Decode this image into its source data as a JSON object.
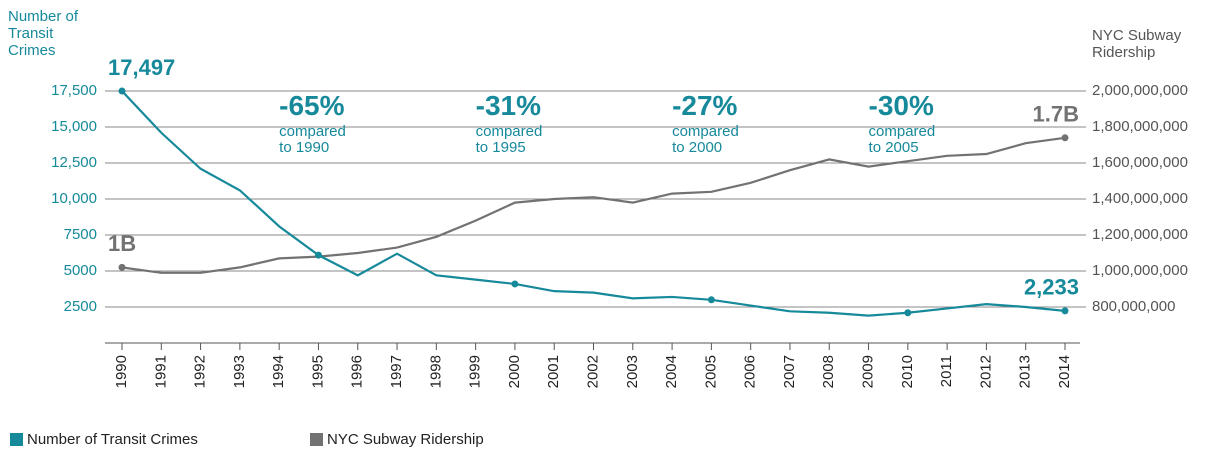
{
  "chart_data": {
    "type": "line",
    "y_label": "Number of Transit Crimes",
    "y2_label": "NYC Subway Ridership",
    "categories": [
      "1990",
      "1991",
      "1992",
      "1993",
      "1994",
      "1995",
      "1996",
      "1997",
      "1998",
      "1999",
      "2000",
      "2001",
      "2002",
      "2003",
      "2004",
      "2005",
      "2006",
      "2007",
      "2008",
      "2009",
      "2010",
      "2011",
      "2012",
      "2013",
      "2014"
    ],
    "series": [
      {
        "name": "Number of Transit Crimes",
        "color": "#16899a",
        "values": [
          17497,
          14600,
          12100,
          10600,
          8100,
          6100,
          4700,
          6200,
          4700,
          4400,
          4100,
          3600,
          3500,
          3100,
          3200,
          3000,
          2600,
          2200,
          2100,
          1900,
          2100,
          2400,
          2700,
          2500,
          2233
        ],
        "value_labels": [
          "17,497",
          null,
          null,
          null,
          null,
          null,
          null,
          null,
          null,
          null,
          null,
          null,
          null,
          null,
          null,
          null,
          null,
          null,
          null,
          null,
          null,
          null,
          null,
          null,
          "2,233"
        ]
      },
      {
        "name": "NYC Subway Ridership",
        "color": "#727272",
        "axis": "y2",
        "values": [
          1020000000,
          990000000,
          990000000,
          1020000000,
          1070000000,
          1080000000,
          1100000000,
          1130000000,
          1190000000,
          1280000000,
          1380000000,
          1400000000,
          1410000000,
          1380000000,
          1430000000,
          1440000000,
          1490000000,
          1560000000,
          1620000000,
          1580000000,
          1610000000,
          1640000000,
          1650000000,
          1710000000,
          1740000000
        ],
        "value_labels": [
          "1B",
          null,
          null,
          null,
          null,
          null,
          null,
          null,
          null,
          null,
          null,
          null,
          null,
          null,
          null,
          null,
          null,
          null,
          null,
          null,
          null,
          null,
          null,
          null,
          "1.7B"
        ]
      }
    ],
    "ylim": [
      0,
      17500
    ],
    "yticks": [
      2500,
      5000,
      7500,
      {
        "value": 10000,
        "label": "10,000"
      },
      {
        "value": 12500,
        "label": "12,500"
      },
      {
        "value": 15000,
        "label": "15,000"
      },
      {
        "value": 17500,
        "label": "17,500"
      }
    ],
    "y2lim": [
      600000000,
      2000000000
    ],
    "y2ticks": [
      {
        "value": 800000000,
        "label": "800,000,000"
      },
      {
        "value": 1000000000,
        "label": "1,000,000,000"
      },
      {
        "value": 1200000000,
        "label": "1,200,000,000"
      },
      {
        "value": 1400000000,
        "label": "1,400,000,000"
      },
      {
        "value": 1600000000,
        "label": "1,600,000,000"
      },
      {
        "value": 1800000000,
        "label": "1,800,000,000"
      },
      {
        "value": 2000000000,
        "label": "2,000,000,000"
      }
    ],
    "grid": true,
    "legend": "bottom-left",
    "annotations": [
      {
        "value": "-65%",
        "text": "compared to 1990"
      },
      {
        "value": "-31%",
        "text": "compared to 1995"
      },
      {
        "value": "-27%",
        "text": "compared to 2000"
      },
      {
        "value": "-30%",
        "text": "compared to 2005"
      }
    ]
  }
}
